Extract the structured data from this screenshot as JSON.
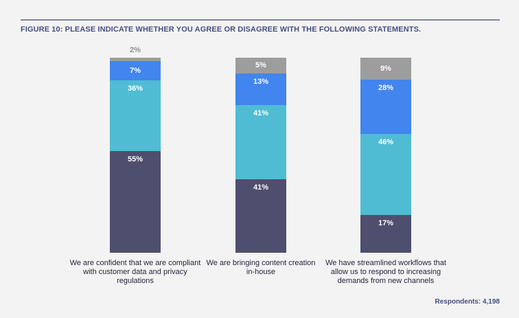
{
  "figure": {
    "title": "FIGURE 10: PLEASE INDICATE WHETHER YOU AGREE OR DISAGREE WITH THE FOLLOWING STATEMENTS.",
    "footer": "Respondents: 4,198"
  },
  "colors": {
    "background": "#f3f3f4",
    "title_text": "#454e80",
    "rule": "#81869e",
    "value_label": "#ffffff",
    "outside_value_label": "#8f8f8f",
    "category_label": "#23233a"
  },
  "chart_data": {
    "type": "bar",
    "stacked": true,
    "orientation": "vertical",
    "unit": "%",
    "title": "FIGURE 10: PLEASE INDICATE WHETHER YOU AGREE OR DISAGREE WITH THE FOLLOWING STATEMENTS.",
    "categories": [
      "We are confident that we are compliant with customer data and privacy regulations",
      "We are bringing content creation in-house",
      "We have streamlined workflows that allow us to respond to increasing demands from new channels"
    ],
    "category_lines": [
      [
        "We are confident that we are compliant",
        "with customer data and privacy",
        "regulations"
      ],
      [
        "We are bringing content creation",
        "in-house"
      ],
      [
        "We have streamlined workflows that",
        "allow us to respond to increasing",
        "demands from new channels"
      ]
    ],
    "series": [
      {
        "name": "gray-top",
        "color": "#9d9d9d",
        "values": [
          2,
          5,
          9
        ]
      },
      {
        "name": "blue",
        "color": "#4285ee",
        "values": [
          7,
          13,
          28
        ]
      },
      {
        "name": "teal",
        "color": "#4fbcd3",
        "values": [
          36,
          41,
          46
        ]
      },
      {
        "name": "dark-navy",
        "color": "#4e4e6e",
        "values": [
          55,
          41,
          17
        ]
      }
    ],
    "ylim": [
      0,
      100
    ],
    "grid": false,
    "legend": "none",
    "annotation": "Respondents: 4,198"
  }
}
